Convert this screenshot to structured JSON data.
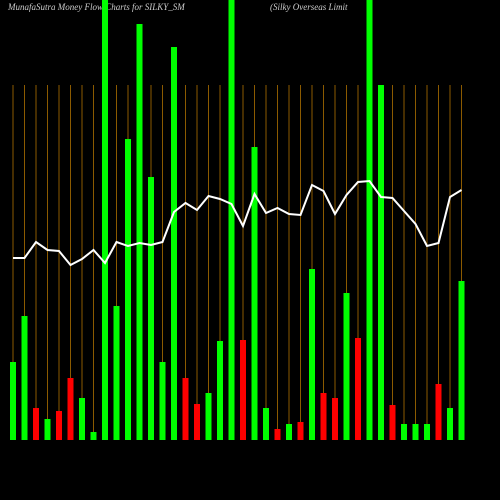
{
  "chart_data": {
    "type": "bar",
    "title": "MunafaSutra  Money Flow  Charts for SILKY_SM",
    "subtitle": "(Silky Overseas Limit",
    "categories": [
      null,
      null,
      null,
      null,
      null,
      null,
      null,
      null,
      null,
      null,
      null,
      null,
      null,
      null,
      null,
      null,
      null,
      null,
      null,
      null,
      null,
      null,
      null,
      null,
      null,
      null,
      null,
      null,
      null,
      null,
      null,
      null,
      null,
      null,
      null,
      null,
      null,
      null,
      null,
      null
    ],
    "values": [
      78,
      124,
      32,
      21,
      29,
      62,
      42,
      8,
      440,
      134,
      301,
      416,
      263,
      78,
      393,
      62,
      36,
      47,
      99,
      440,
      100,
      293,
      32,
      11,
      16,
      18,
      171,
      47,
      42,
      147,
      102,
      440,
      355,
      35,
      16,
      16,
      16,
      56,
      32,
      159
    ],
    "bar_colors": [
      "#00ff00",
      "#00ff00",
      "#ff0000",
      "#00ff00",
      "#ff0000",
      "#ff0000",
      "#00ff00",
      "#00ff00",
      "#00ff00",
      "#00ff00",
      "#00ff00",
      "#00ff00",
      "#00ff00",
      "#00ff00",
      "#00ff00",
      "#ff0000",
      "#ff0000",
      "#00ff00",
      "#00ff00",
      "#00ff00",
      "#ff0000",
      "#00ff00",
      "#00ff00",
      "#ff0000",
      "#00ff00",
      "#ff0000",
      "#00ff00",
      "#ff0000",
      "#ff0000",
      "#00ff00",
      "#ff0000",
      "#00ff00",
      "#00ff00",
      "#ff0000",
      "#00ff00",
      "#00ff00",
      "#00ff00",
      "#ff0000",
      "#00ff00",
      "#00ff00"
    ],
    "line_values": [
      182,
      182,
      198,
      190,
      189,
      175,
      181,
      190,
      177,
      198,
      194,
      197,
      195,
      198,
      228,
      237,
      230,
      244,
      241,
      236,
      214,
      246,
      227,
      232,
      226,
      225,
      255,
      249,
      226,
      245,
      258,
      259,
      243,
      242,
      229,
      216,
      194,
      197,
      243,
      250
    ],
    "line_color": "#ffffff",
    "grid_color": "#8b5a00",
    "ylim": [
      0,
      440
    ]
  }
}
